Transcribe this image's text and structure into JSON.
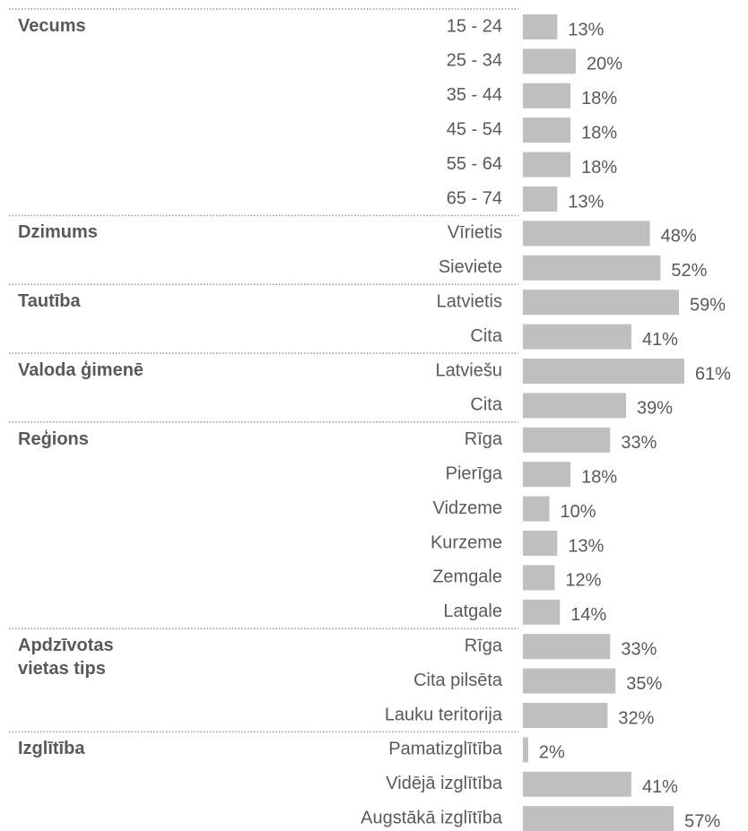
{
  "chart_data": {
    "type": "bar",
    "color": "#bfbfbf",
    "groups": [
      {
        "name": "Vecums",
        "categories": [
          "15 - 24",
          "25 - 34",
          "35 - 44",
          "45 - 54",
          "55 - 64",
          "65 - 74"
        ],
        "values": [
          13,
          20,
          18,
          18,
          18,
          13
        ],
        "value_labels": [
          "13%",
          "20%",
          "18%",
          "18%",
          "18%",
          "13%"
        ]
      },
      {
        "name": "Dzimums",
        "categories": [
          "Vīrietis",
          "Sieviete"
        ],
        "values": [
          48,
          52
        ],
        "value_labels": [
          "48%",
          "52%"
        ]
      },
      {
        "name": "Tautība",
        "categories": [
          "Latvietis",
          "Cita"
        ],
        "values": [
          59,
          41
        ],
        "value_labels": [
          "59%",
          "41%"
        ]
      },
      {
        "name": "Valoda ģimenē",
        "categories": [
          "Latviešu",
          "Cita"
        ],
        "values": [
          61,
          39
        ],
        "value_labels": [
          "61%",
          "39%"
        ]
      },
      {
        "name": "Reģions",
        "categories": [
          "Rīga",
          "Pierīga",
          "Vidzeme",
          "Kurzeme",
          "Zemgale",
          "Latgale"
        ],
        "values": [
          33,
          18,
          10,
          13,
          12,
          14
        ],
        "value_labels": [
          "33%",
          "18%",
          "10%",
          "13%",
          "12%",
          "14%"
        ]
      },
      {
        "name": "Apdzīvotas vietas tips",
        "categories": [
          "Rīga",
          "Cita pilsēta",
          "Lauku teritorija"
        ],
        "values": [
          33,
          35,
          32
        ],
        "value_labels": [
          "33%",
          "35%",
          "32%"
        ]
      },
      {
        "name": "Izglītība",
        "categories": [
          "Pamatizglītība",
          "Vidējā izglītība",
          "Augstākā izglītība"
        ],
        "values": [
          2,
          41,
          57
        ],
        "value_labels": [
          "2%",
          "41%",
          "57%"
        ]
      }
    ]
  }
}
